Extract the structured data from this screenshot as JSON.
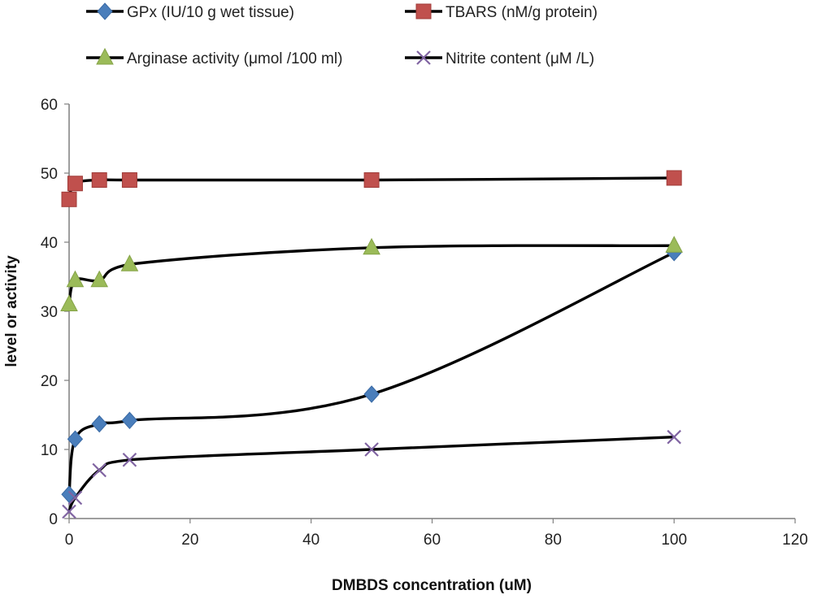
{
  "chart_data": {
    "type": "line",
    "title": "",
    "xlabel": "DMBDS concentration (uM)",
    "ylabel": "level or activity",
    "xlim": [
      0,
      120
    ],
    "ylim": [
      0,
      60
    ],
    "x_ticks": [
      0,
      20,
      40,
      60,
      80,
      100,
      120
    ],
    "y_ticks": [
      0,
      10,
      20,
      30,
      40,
      50,
      60
    ],
    "grid": false,
    "legend_position": "top",
    "smooth": true,
    "series": [
      {
        "name": "GPx (IU/10 g wet tissue)",
        "marker": "diamond",
        "marker_color": "#4a7ebb",
        "line_color": "#000000",
        "x": [
          0,
          1,
          5,
          10,
          50,
          100
        ],
        "y": [
          3.5,
          11.5,
          13.7,
          14.2,
          18,
          38.5
        ]
      },
      {
        "name": "TBARS (nM/g protein)",
        "marker": "square",
        "marker_color": "#c0504d",
        "line_color": "#000000",
        "x": [
          0,
          1,
          5,
          10,
          50,
          100
        ],
        "y": [
          46.2,
          48.5,
          49,
          49,
          49,
          49.3
        ]
      },
      {
        "name": "Arginase activity (μmol /100 ml)",
        "marker": "triangle",
        "marker_color": "#9bbb59",
        "line_color": "#000000",
        "x": [
          0,
          1,
          5,
          10,
          50,
          100
        ],
        "y": [
          31,
          34.5,
          34.5,
          36.8,
          39.2,
          39.5
        ]
      },
      {
        "name": "Nitrite content (μM /L)",
        "marker": "x",
        "marker_color": "#8064a2",
        "line_color": "#000000",
        "x": [
          0,
          1,
          5,
          10,
          50,
          100
        ],
        "y": [
          1,
          3,
          7,
          8.5,
          10,
          11.8
        ]
      }
    ]
  }
}
